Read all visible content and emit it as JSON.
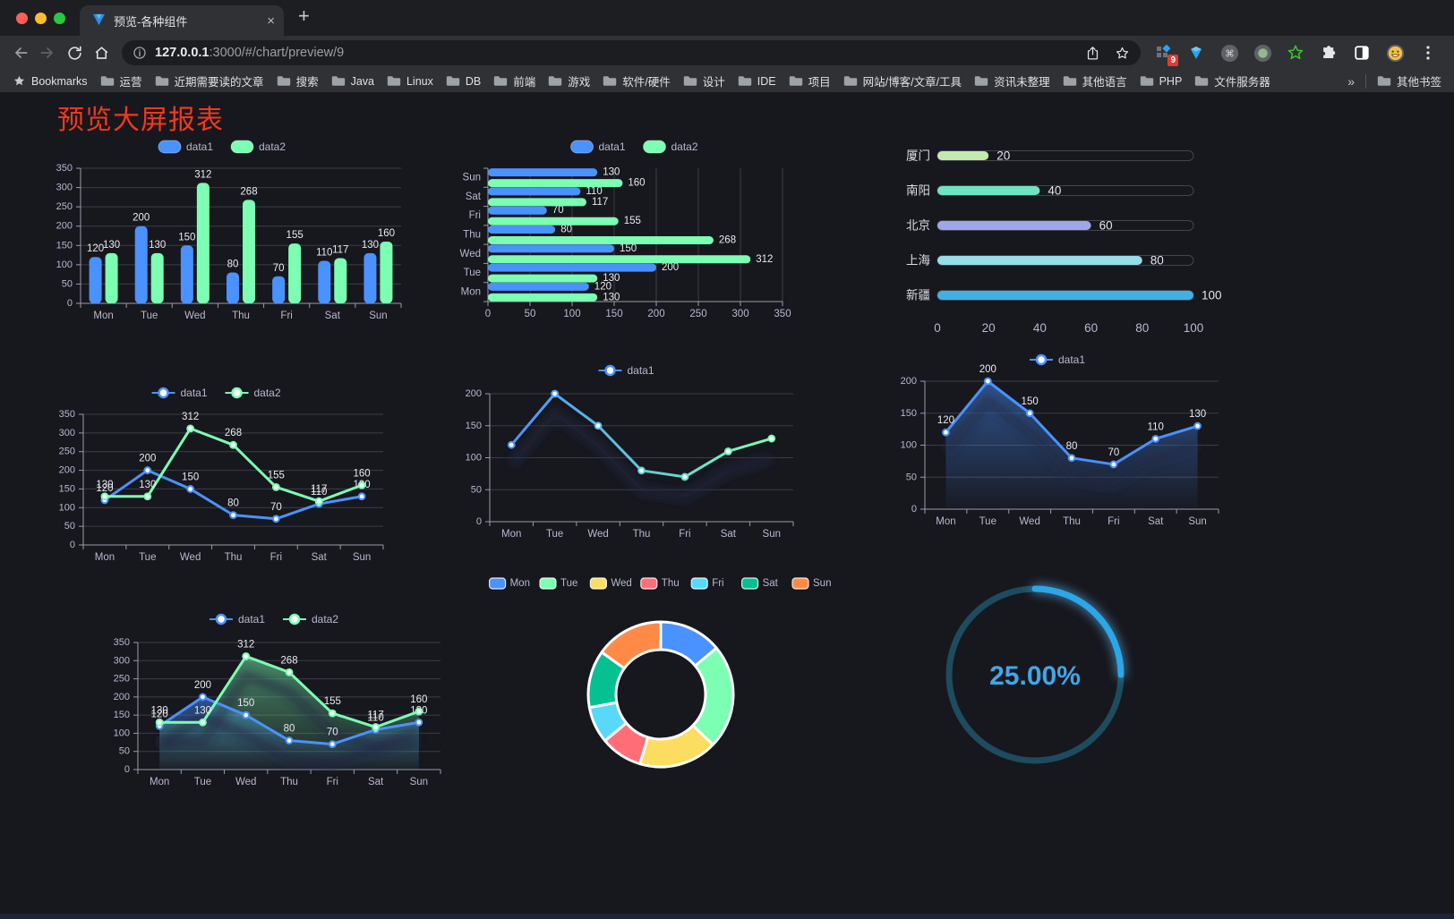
{
  "browser": {
    "tab": {
      "title": "预览-各种组件",
      "close_glyph": "×",
      "new_tab_glyph": "+"
    },
    "address": {
      "host": "127.0.0.1",
      "rest": ":3000/#/chart/preview/9"
    },
    "extensions_badge": "9",
    "bookmarks_label": "Bookmarks",
    "bookmarks": [
      "运营",
      "近期需要读的文章",
      "搜索",
      "Java",
      "Linux",
      "DB",
      "前端",
      "游戏",
      "软件/硬件",
      "设计",
      "IDE",
      "项目",
      "网站/博客/文章/工具",
      "资讯未整理",
      "其他语言",
      "PHP",
      "文件服务器"
    ],
    "bookmarks_overflow": "»",
    "other_bookmarks": "其他书签"
  },
  "page": {
    "title": "预览大屏报表",
    "title_color": "#f2381c",
    "background": "#17171e"
  },
  "chart_data": [
    {
      "id": "grouped-bar",
      "type": "bar",
      "categories": [
        "Mon",
        "Tue",
        "Wed",
        "Thu",
        "Fri",
        "Sat",
        "Sun"
      ],
      "series": [
        {
          "name": "data1",
          "color": "#4992ff",
          "values": [
            120,
            200,
            150,
            80,
            70,
            110,
            130
          ]
        },
        {
          "name": "data2",
          "color": "#7cffb2",
          "values": [
            130,
            130,
            312,
            268,
            155,
            117,
            160
          ]
        }
      ],
      "ylim": [
        0,
        350
      ],
      "ytick": 50,
      "legend_position": "top",
      "grid": true,
      "value_labels": true
    },
    {
      "id": "grouped-hbar",
      "type": "bar",
      "orientation": "horizontal",
      "categories_top_to_bottom": [
        "Sun",
        "Sat",
        "Fri",
        "Thu",
        "Wed",
        "Tue",
        "Mon"
      ],
      "series": [
        {
          "name": "data1",
          "color": "#4992ff",
          "values": [
            130,
            110,
            70,
            80,
            150,
            200,
            120
          ]
        },
        {
          "name": "data2",
          "color": "#7cffb2",
          "values": [
            160,
            117,
            155,
            268,
            312,
            130,
            130
          ]
        }
      ],
      "xlim": [
        0,
        350
      ],
      "xtick": 50,
      "legend_position": "top",
      "grid": true,
      "value_labels": true
    },
    {
      "id": "city-progress",
      "type": "bar",
      "orientation": "progress",
      "rows": [
        {
          "label": "厦门",
          "value": 20,
          "color": "#c4ebad"
        },
        {
          "label": "南阳",
          "value": 40,
          "color": "#6be6c1"
        },
        {
          "label": "北京",
          "value": 60,
          "color": "#a0a7e6"
        },
        {
          "label": "上海",
          "value": 80,
          "color": "#96dee8"
        },
        {
          "label": "新疆",
          "value": 100,
          "color": "#3fb1e3"
        }
      ],
      "xlim": [
        0,
        100
      ],
      "xticks": [
        0,
        20,
        40,
        60,
        80,
        100
      ]
    },
    {
      "id": "two-line",
      "type": "line",
      "categories": [
        "Mon",
        "Tue",
        "Wed",
        "Thu",
        "Fri",
        "Sat",
        "Sun"
      ],
      "series": [
        {
          "name": "data1",
          "color": "#4992ff",
          "values": [
            120,
            200,
            150,
            80,
            70,
            110,
            130
          ]
        },
        {
          "name": "data2",
          "color": "#7cffb2",
          "values": [
            130,
            130,
            312,
            268,
            155,
            117,
            160
          ]
        }
      ],
      "ylim": [
        0,
        350
      ],
      "ytick": 50,
      "legend_position": "top",
      "value_labels": true
    },
    {
      "id": "gradient-line",
      "type": "line",
      "categories": [
        "Mon",
        "Tue",
        "Wed",
        "Thu",
        "Fri",
        "Sat",
        "Sun"
      ],
      "series": [
        {
          "name": "data1",
          "gradient": [
            "#4992ff",
            "#7cffb2"
          ],
          "values": [
            120,
            200,
            150,
            80,
            70,
            110,
            130
          ]
        }
      ],
      "ylim": [
        0,
        200
      ],
      "ytick": 50,
      "legend_position": "top",
      "value_labels": false,
      "shadow": true
    },
    {
      "id": "area-line",
      "type": "area",
      "categories": [
        "Mon",
        "Tue",
        "Wed",
        "Thu",
        "Fri",
        "Sat",
        "Sun"
      ],
      "series": [
        {
          "name": "data1",
          "color": "#4992ff",
          "area": true,
          "values": [
            120,
            200,
            150,
            80,
            70,
            110,
            130
          ]
        }
      ],
      "ylim": [
        0,
        200
      ],
      "ytick": 50,
      "legend_position": "top",
      "value_labels": true,
      "shadow": true
    },
    {
      "id": "two-line-area",
      "type": "area",
      "categories": [
        "Mon",
        "Tue",
        "Wed",
        "Thu",
        "Fri",
        "Sat",
        "Sun"
      ],
      "series": [
        {
          "name": "data1",
          "color": "#4992ff",
          "area": true,
          "values": [
            120,
            200,
            150,
            80,
            70,
            110,
            130
          ]
        },
        {
          "name": "data2",
          "color": "#7cffb2",
          "area": true,
          "values": [
            130,
            130,
            312,
            268,
            155,
            117,
            160
          ]
        }
      ],
      "ylim": [
        0,
        350
      ],
      "ytick": 50,
      "legend_position": "top",
      "value_labels": true,
      "shadow": true
    },
    {
      "id": "donut",
      "type": "pie",
      "labels": [
        "Mon",
        "Tue",
        "Wed",
        "Thu",
        "Fri",
        "Sat",
        "Sun"
      ],
      "values": [
        120,
        200,
        150,
        80,
        70,
        110,
        130
      ],
      "colors": [
        "#4992ff",
        "#7cffb2",
        "#fddd60",
        "#ff6e76",
        "#58d9f9",
        "#05c091",
        "#ff8a45"
      ],
      "inner_radius_ratio": 0.62,
      "border_color": "#ffffff",
      "legend_position": "top"
    },
    {
      "id": "gauge",
      "type": "gauge",
      "percent": 25,
      "value_label": "25.00%",
      "color": "#2aa7e8",
      "track_color": "#1d4c5e",
      "text_color": "#41a6e8"
    }
  ]
}
